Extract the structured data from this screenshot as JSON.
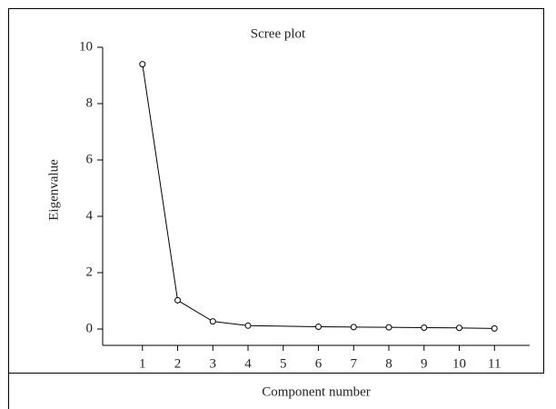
{
  "chart_data": {
    "type": "line",
    "title": "Scree plot",
    "x_label": "Component number",
    "y_label": "Eigenvalue",
    "x": [
      1,
      2,
      3,
      4,
      6,
      7,
      8,
      9,
      10,
      11
    ],
    "series": [
      {
        "color": "#000000",
        "values": [
          9.4,
          1.02,
          0.27,
          0.12,
          0.08,
          0.07,
          0.06,
          0.05,
          0.04,
          0.02
        ]
      }
    ],
    "xlim": [
      -0.13,
      12
    ],
    "xticks": [
      1,
      2,
      3,
      4,
      5,
      6,
      7,
      8,
      9,
      10,
      11
    ],
    "ylim": [
      -0.58,
      10
    ],
    "yticks": [
      0,
      2,
      4,
      6,
      8,
      10
    ],
    "grid": false
  }
}
